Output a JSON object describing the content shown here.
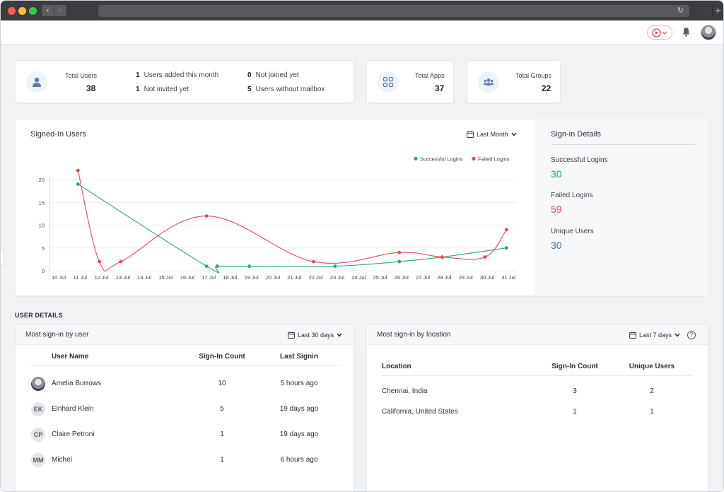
{
  "header": {
    "avatar_alt": "User avatar"
  },
  "stats": {
    "users": {
      "label": "Total Users",
      "value": "38"
    },
    "users_added_month": {
      "value": "1",
      "label": "Users added this month"
    },
    "not_invited": {
      "value": "1",
      "label": "Not invited yet"
    },
    "not_joined": {
      "value": "0",
      "label": "Not joined yet"
    },
    "without_mailbox": {
      "value": "5",
      "label": "Users without mailbox"
    },
    "apps": {
      "label": "Total Apps",
      "value": "37"
    },
    "groups": {
      "label": "Total Groups",
      "value": "22"
    }
  },
  "signed_in": {
    "title": "Signed-In Users",
    "filter": "Last Month"
  },
  "chart_data": {
    "type": "line",
    "title": "Signed-In Users",
    "categories": [
      "10 Jul",
      "11 Jul",
      "12 Jul",
      "13 Jul",
      "14 Jul",
      "15 Jul",
      "16 Jul",
      "17 Jul",
      "18 Jul",
      "19 Jul",
      "20 Jul",
      "21 Jul",
      "22 Jul",
      "23 Jul",
      "24 Jul",
      "25 Jul",
      "26 Jul",
      "27 Jul",
      "28 Jul",
      "29 Jul",
      "30 Jul",
      "31 Jul"
    ],
    "yticks": [
      0,
      5,
      10,
      15,
      20
    ],
    "ylim": [
      0,
      22
    ],
    "legend": "top-right",
    "series": [
      {
        "name": "Successful Logins",
        "color": "#27a86b",
        "points": [
          [
            0.9,
            19
          ],
          [
            6.9,
            1
          ],
          [
            7.4,
            1
          ],
          [
            8.9,
            1
          ],
          [
            12.9,
            1
          ],
          [
            15.9,
            2
          ],
          [
            17.9,
            3
          ],
          [
            20.9,
            5
          ]
        ]
      },
      {
        "name": "Failed Logins",
        "color": "#e04b5a",
        "points": [
          [
            0.9,
            22
          ],
          [
            1.9,
            2
          ],
          [
            2.9,
            2
          ],
          [
            6.9,
            12
          ],
          [
            11.9,
            2
          ],
          [
            15.9,
            4
          ],
          [
            17.9,
            3
          ],
          [
            19.9,
            3
          ],
          [
            20.9,
            9
          ]
        ]
      }
    ]
  },
  "signin_details": {
    "title": "Sign-in Details",
    "successful": {
      "label": "Successful Logins",
      "value": "30",
      "color": "#27a86b"
    },
    "failed": {
      "label": "Failed Logins",
      "value": "59",
      "color": "#e04b5a"
    },
    "unique": {
      "label": "Unique Users",
      "value": "30",
      "color": "#3f6fb5"
    }
  },
  "user_details": {
    "title": "USER DETAILS",
    "by_user": {
      "title": "Most sign-in by user",
      "filter": "Last 30 days",
      "columns": [
        "User Name",
        "Sign-In Count",
        "Last Signin"
      ],
      "rows": [
        {
          "initials": "",
          "name": "Amelia Burrows",
          "count": "10",
          "last": "5 hours ago"
        },
        {
          "initials": "EK",
          "name": "Einhard Klein",
          "count": "5",
          "last": "19 days ago"
        },
        {
          "initials": "CP",
          "name": "Claire Petroni",
          "count": "1",
          "last": "19 days ago"
        },
        {
          "initials": "MM",
          "name": "Michel",
          "count": "1",
          "last": "6 hours ago"
        }
      ]
    },
    "by_location": {
      "title": "Most sign-in by location",
      "filter": "Last 7 days",
      "help": "?",
      "columns": [
        "Location",
        "Sign-In Count",
        "Unique Users"
      ],
      "rows": [
        {
          "location": "Chennai, India",
          "count": "3",
          "unique": "2"
        },
        {
          "location": "California, United States",
          "count": "1",
          "unique": "1"
        }
      ]
    }
  }
}
